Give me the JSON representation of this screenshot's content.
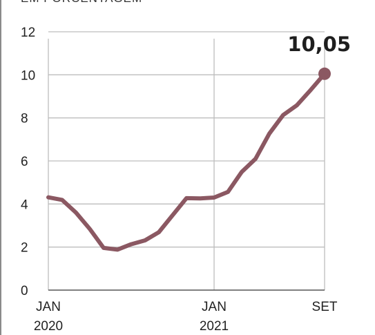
{
  "unit_label": "EM PORCENTAGEM",
  "chart_data": {
    "type": "line",
    "ylabel": "EM PORCENTAGEM",
    "ylim": [
      0,
      12
    ],
    "yticks": [
      0,
      2,
      4,
      6,
      8,
      10,
      12
    ],
    "x_labels": [
      {
        "line1": "JAN",
        "line2": "2020",
        "index": 0
      },
      {
        "line1": "JAN",
        "line2": "2021",
        "index": 12
      },
      {
        "line1": "SET",
        "line2": "",
        "index": 20
      }
    ],
    "series": [
      {
        "x": [
          "Jan 2020",
          "Fev 2020",
          "Mar 2020",
          "Abr 2020",
          "Mai 2020",
          "Jun 2020",
          "Jul 2020",
          "Ago 2020",
          "Set 2020",
          "Out 2020",
          "Nov 2020",
          "Dez 2020",
          "Jan 2021",
          "Fev 2021",
          "Mar 2021",
          "Abr 2021",
          "Mai 2021",
          "Jun 2021",
          "Jul 2021",
          "Ago 2021",
          "Set 2021"
        ],
        "values": [
          4.31,
          4.19,
          3.6,
          2.84,
          1.96,
          1.88,
          2.13,
          2.31,
          2.69,
          3.48,
          4.27,
          4.26,
          4.3,
          4.56,
          5.49,
          6.1,
          7.27,
          8.13,
          8.59,
          9.3,
          10.05
        ]
      }
    ],
    "highlight": {
      "index": 20,
      "label": "10,05"
    },
    "grid": true,
    "colors": {
      "line": "#8b5862",
      "grid": "#bdbdbd",
      "axis": "#555555"
    }
  }
}
